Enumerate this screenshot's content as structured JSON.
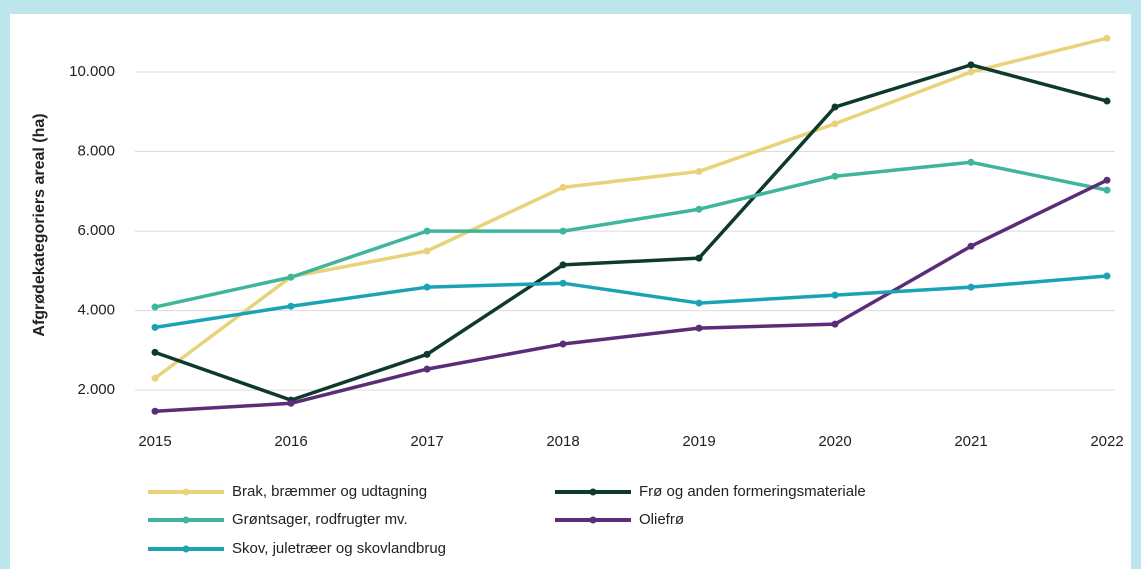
{
  "chart_data": {
    "type": "line",
    "y_label": "Afgrødekategoriers areal (ha)",
    "categories": [
      "2015",
      "2016",
      "2017",
      "2018",
      "2019",
      "2020",
      "2021",
      "2022"
    ],
    "series": [
      {
        "name": "Brak, bræmmer og udtagning",
        "color": "#e8d27a",
        "values": [
          2300,
          4850,
          5500,
          7100,
          7500,
          8700,
          10000,
          10850
        ]
      },
      {
        "name": "Frø og anden formeringsmateriale",
        "color": "#0e3a2d",
        "values": [
          2950,
          1750,
          2900,
          5150,
          5320,
          9120,
          10180,
          9270
        ]
      },
      {
        "name": "Grøntsager, rodfrugter mv.",
        "color": "#3fb59a",
        "values": [
          4090,
          4840,
          6000,
          6000,
          6550,
          7380,
          7730,
          7030
        ]
      },
      {
        "name": "Oliefrø",
        "color": "#5b2d78",
        "values": [
          1470,
          1670,
          2530,
          3160,
          3560,
          3660,
          5620,
          7280
        ]
      },
      {
        "name": "Skov, juletræer og skovlandbrug",
        "color": "#1ba3b5",
        "values": [
          3580,
          4110,
          4590,
          4690,
          4190,
          4390,
          4590,
          4870
        ]
      }
    ],
    "ylim": [
      1250,
      11000
    ],
    "yticks": [
      {
        "value": 2000,
        "label": "2.000"
      },
      {
        "value": 4000,
        "label": "4.000"
      },
      {
        "value": 6000,
        "label": "6.000"
      },
      {
        "value": 8000,
        "label": "8.000"
      },
      {
        "value": 10000,
        "label": "10.000"
      }
    ],
    "grid": true,
    "legend": "bottom"
  }
}
